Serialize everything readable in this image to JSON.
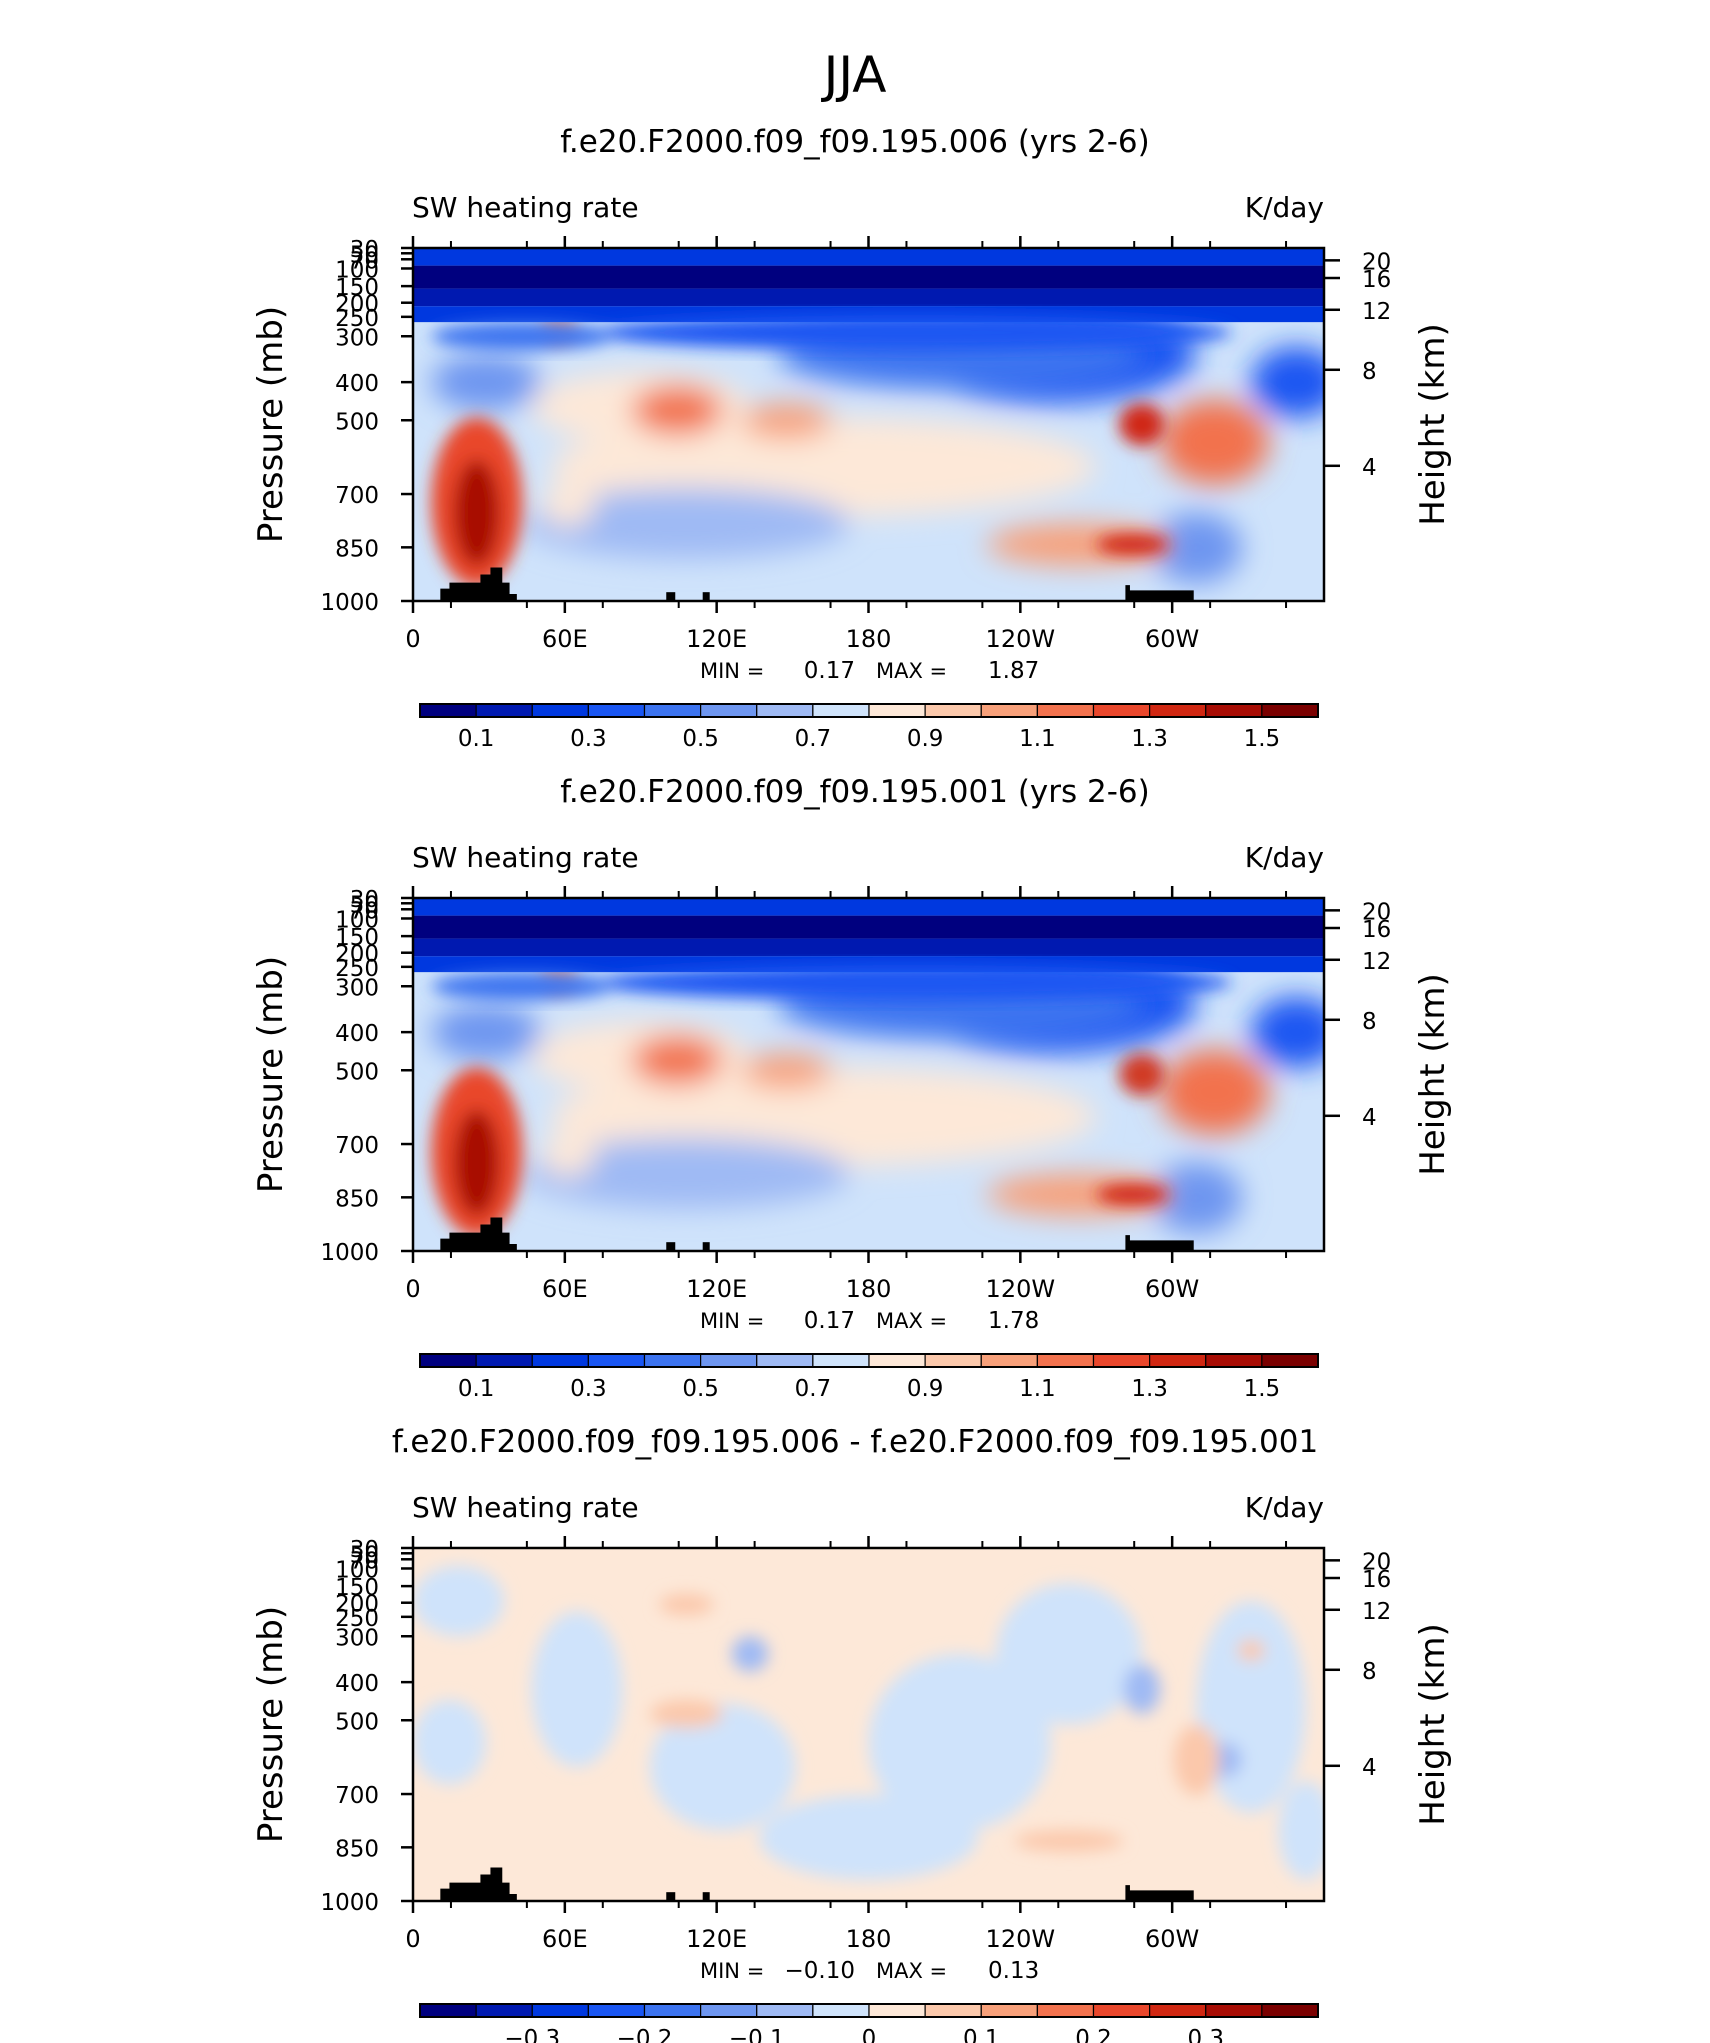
{
  "page_title": "JJA",
  "chart_data": [
    {
      "type": "heatmap",
      "title": "f.e20.F2000.f09_f09.195.006 (yrs 2-6)",
      "left_label": "SW heating rate",
      "right_label": "K/day",
      "ylabel": "Pressure (mb)",
      "ylabel_right": "Height (km)",
      "x_ticks": [
        "0",
        "60E",
        "120E",
        "180",
        "120W",
        "60W"
      ],
      "y_ticks": [
        "30",
        "50",
        "70",
        "100",
        "150",
        "200",
        "250",
        "300",
        "400",
        "500",
        "700",
        "850",
        "1000"
      ],
      "y_right_ticks": [
        "20",
        "16",
        "12",
        "8",
        "4"
      ],
      "stats": {
        "min_label": "MIN =",
        "min": "0.17",
        "max_label": "MAX =",
        "max": "1.87"
      },
      "colorbar_labels": [
        "0.1",
        "0.3",
        "0.5",
        "0.7",
        "0.9",
        "1.1",
        "1.3",
        "1.5"
      ],
      "mode": "abs"
    },
    {
      "type": "heatmap",
      "title": "f.e20.F2000.f09_f09.195.001 (yrs 2-6)",
      "left_label": "SW heating rate",
      "right_label": "K/day",
      "ylabel": "Pressure (mb)",
      "ylabel_right": "Height (km)",
      "x_ticks": [
        "0",
        "60E",
        "120E",
        "180",
        "120W",
        "60W"
      ],
      "y_ticks": [
        "30",
        "50",
        "70",
        "100",
        "150",
        "200",
        "250",
        "300",
        "400",
        "500",
        "700",
        "850",
        "1000"
      ],
      "y_right_ticks": [
        "20",
        "16",
        "12",
        "8",
        "4"
      ],
      "stats": {
        "min_label": "MIN =",
        "min": "0.17",
        "max_label": "MAX =",
        "max": "1.78"
      },
      "colorbar_labels": [
        "0.1",
        "0.3",
        "0.5",
        "0.7",
        "0.9",
        "1.1",
        "1.3",
        "1.5"
      ],
      "mode": "abs"
    },
    {
      "type": "heatmap",
      "title": "f.e20.F2000.f09_f09.195.006 - f.e20.F2000.f09_f09.195.001",
      "left_label": "SW heating rate",
      "right_label": "K/day",
      "ylabel": "Pressure (mb)",
      "ylabel_right": "Height (km)",
      "x_ticks": [
        "0",
        "60E",
        "120E",
        "180",
        "120W",
        "60W"
      ],
      "y_ticks": [
        "30",
        "50",
        "70",
        "100",
        "150",
        "200",
        "250",
        "300",
        "400",
        "500",
        "700",
        "850",
        "1000"
      ],
      "y_right_ticks": [
        "20",
        "16",
        "12",
        "8",
        "4"
      ],
      "stats": {
        "min_label": "MIN =",
        "min": "−0.10",
        "max_label": "MAX =",
        "max": "0.13"
      },
      "colorbar_labels": [
        "−0.3",
        "−0.2",
        "−0.1",
        "0",
        "0.1",
        "0.2",
        "0.3"
      ],
      "mode": "diff"
    }
  ],
  "colors": {
    "scale": [
      "#00007f",
      "#0019b0",
      "#0038df",
      "#1a56f2",
      "#3d74f0",
      "#6e96f0",
      "#9fbaf4",
      "#cfe3fb",
      "#fde8d8",
      "#fbc8ab",
      "#f7a07a",
      "#f2724e",
      "#e9472c",
      "#d02712",
      "#a80d05",
      "#7a0000"
    ]
  }
}
